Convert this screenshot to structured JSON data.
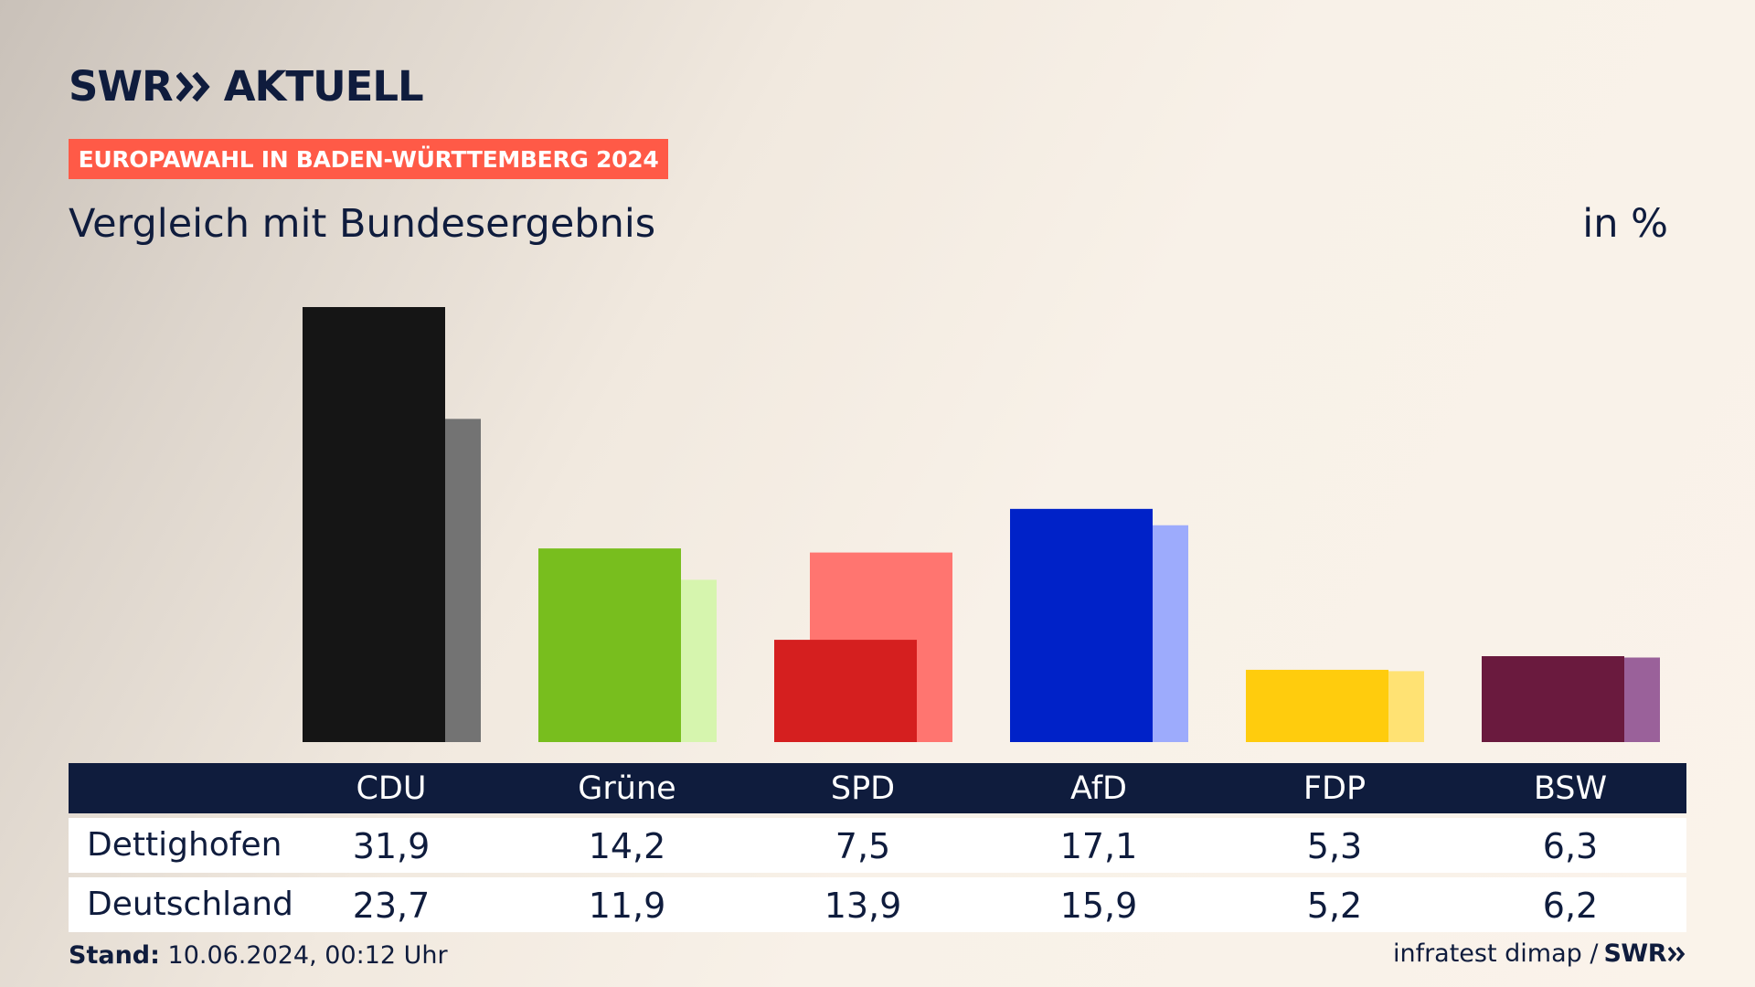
{
  "brand": {
    "swr": "SWR",
    "aktuell": "AKTUELL"
  },
  "banner": "EUROPAWAHL IN BADEN-WÜRTTEMBERG 2024",
  "subtitle": "Vergleich mit Bundesergebnis",
  "unit": "in %",
  "colors": {
    "navy": "#0f1c3d",
    "banner": "#ff5a47"
  },
  "chart_data": {
    "type": "bar",
    "categories": [
      "CDU",
      "Grüne",
      "SPD",
      "AfD",
      "FDP",
      "BSW"
    ],
    "series": [
      {
        "name": "Dettighofen",
        "values": [
          31.9,
          14.2,
          7.5,
          17.1,
          5.3,
          6.3
        ],
        "colors": [
          "#151515",
          "#78be1e",
          "#d51f1f",
          "#0022c8",
          "#ffcc0d",
          "#6a1a3e"
        ]
      },
      {
        "name": "Deutschland",
        "values": [
          23.7,
          11.9,
          13.9,
          15.9,
          5.2,
          6.2
        ],
        "colors": [
          "#737373",
          "#d6f5ae",
          "#ff7570",
          "#9dabfc",
          "#ffe273",
          "#9a619a"
        ]
      }
    ],
    "ylim": [
      0,
      32
    ],
    "grid": false
  },
  "table": {
    "rows": [
      {
        "label": "Dettighofen",
        "values": [
          "31,9",
          "14,2",
          "7,5",
          "17,1",
          "5,3",
          "6,3"
        ]
      },
      {
        "label": "Deutschland",
        "values": [
          "23,7",
          "11,9",
          "13,9",
          "15,9",
          "5,2",
          "6,2"
        ]
      }
    ]
  },
  "footer": {
    "stand_label": "Stand:",
    "stand_value": "10.06.2024, 00:12 Uhr",
    "source": "infratest dimap /",
    "source_brand": "SWR"
  }
}
